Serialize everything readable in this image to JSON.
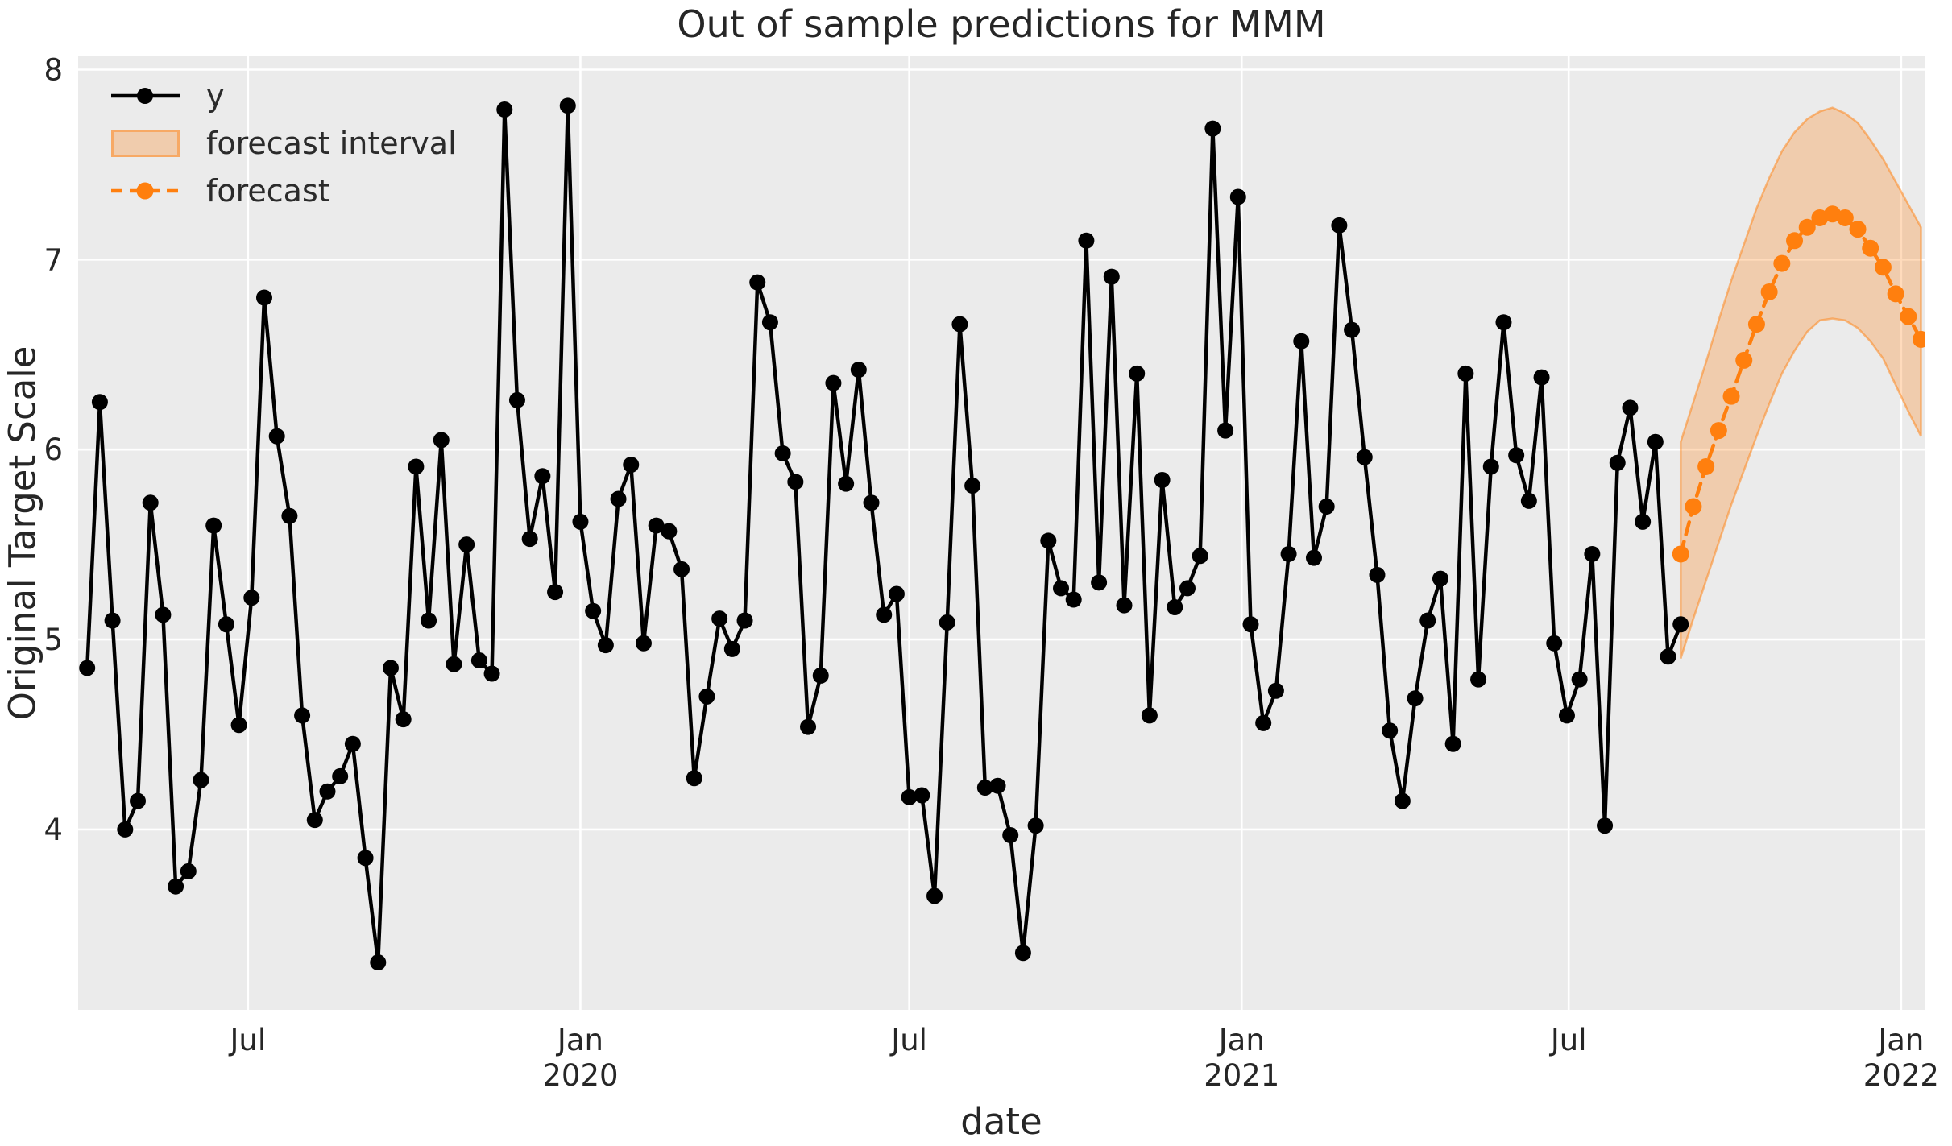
{
  "title": "Out of sample predictions for MMM",
  "colors": {
    "figure_bg": "#ffffff",
    "plot_bg": "#ebebeb",
    "grid": "#ffffff",
    "series_y": "#000000",
    "forecast": "#ff7f0e",
    "band_fill": "rgba(255,127,14,0.28)",
    "band_edge": "rgba(255,127,14,0.5)",
    "text": "#262626"
  },
  "legend": {
    "position": "upper left",
    "items": [
      {
        "label": "y",
        "type": "solid-line-with-marker"
      },
      {
        "label": "forecast interval",
        "type": "filled-band"
      },
      {
        "label": "forecast",
        "type": "dashed-line-with-marker"
      }
    ]
  },
  "chart_data": {
    "type": "line",
    "title": "Out of sample predictions for MMM",
    "xlabel": "date",
    "ylabel": "Original Target Scale",
    "grid": true,
    "legend_position": "upper left",
    "x_axis": {
      "kind": "date",
      "range": [
        "2019-03-29",
        "2022-01-14"
      ],
      "ticks": [
        {
          "date": "2019-07-01",
          "label": "Jul"
        },
        {
          "date": "2020-01-01",
          "label": "Jan",
          "year": "2020"
        },
        {
          "date": "2020-07-01",
          "label": "Jul"
        },
        {
          "date": "2021-01-01",
          "label": "Jan",
          "year": "2021"
        },
        {
          "date": "2021-07-01",
          "label": "Jul"
        },
        {
          "date": "2022-01-01",
          "label": "Jan",
          "year": "2022"
        }
      ]
    },
    "y_axis": {
      "range": [
        3.05,
        8.07
      ],
      "ticks": [
        4,
        5,
        6,
        7,
        8
      ]
    },
    "series": [
      {
        "name": "y",
        "color": "#000000",
        "line_style": "solid",
        "marker": "circle",
        "start_date": "2019-04-03",
        "step_days": 7,
        "values": [
          4.85,
          6.25,
          5.1,
          4.0,
          4.15,
          5.72,
          5.13,
          3.7,
          3.78,
          4.26,
          5.6,
          5.08,
          4.55,
          5.22,
          6.8,
          6.07,
          5.65,
          4.6,
          4.05,
          4.2,
          4.28,
          4.45,
          3.85,
          3.3,
          4.85,
          4.58,
          5.91,
          5.1,
          6.05,
          4.87,
          5.5,
          4.89,
          4.82,
          7.79,
          6.26,
          5.53,
          5.86,
          5.25,
          7.81,
          5.62,
          5.15,
          4.97,
          5.74,
          5.92,
          4.98,
          5.6,
          5.57,
          5.37,
          4.27,
          4.7,
          5.11,
          4.95,
          5.1,
          6.88,
          6.67,
          5.98,
          5.83,
          4.54,
          4.81,
          6.35,
          5.82,
          6.42,
          5.72,
          5.13,
          5.24,
          4.17,
          4.18,
          3.65,
          5.09,
          6.66,
          5.81,
          4.22,
          4.23,
          3.97,
          3.35,
          4.02,
          5.52,
          5.27,
          5.21,
          7.1,
          5.3,
          6.91,
          5.18,
          6.4,
          4.6,
          5.84,
          5.17,
          5.27,
          5.44,
          7.69,
          6.1,
          7.33,
          5.08,
          4.56,
          4.73,
          5.45,
          6.57,
          5.43,
          5.7,
          7.18,
          6.63,
          5.96,
          5.34,
          4.52,
          4.15,
          4.69,
          5.1,
          5.32,
          4.45,
          6.4,
          4.79,
          5.91,
          6.67,
          5.97,
          5.73,
          6.38,
          4.98,
          4.6,
          4.79,
          5.45,
          4.02,
          5.93,
          6.22,
          5.62,
          6.04,
          4.91,
          5.08
        ]
      },
      {
        "name": "forecast",
        "color": "#ff7f0e",
        "line_style": "dashed",
        "marker": "circle",
        "start_date": "2021-09-01",
        "step_days": 7,
        "values": [
          5.45,
          5.7,
          5.91,
          6.1,
          6.28,
          6.47,
          6.66,
          6.83,
          6.98,
          7.1,
          7.17,
          7.22,
          7.24,
          7.22,
          7.16,
          7.06,
          6.96,
          6.82,
          6.7,
          6.58
        ]
      }
    ],
    "band": {
      "name": "forecast interval",
      "start_date": "2021-09-01",
      "step_days": 7,
      "lower": [
        4.9,
        5.11,
        5.31,
        5.51,
        5.71,
        5.89,
        6.07,
        6.24,
        6.4,
        6.52,
        6.62,
        6.68,
        6.69,
        6.68,
        6.64,
        6.57,
        6.48,
        6.34,
        6.2,
        6.07
      ],
      "upper": [
        6.04,
        6.25,
        6.46,
        6.68,
        6.89,
        7.08,
        7.27,
        7.43,
        7.57,
        7.67,
        7.74,
        7.78,
        7.8,
        7.77,
        7.72,
        7.63,
        7.53,
        7.41,
        7.29,
        7.17
      ]
    }
  }
}
